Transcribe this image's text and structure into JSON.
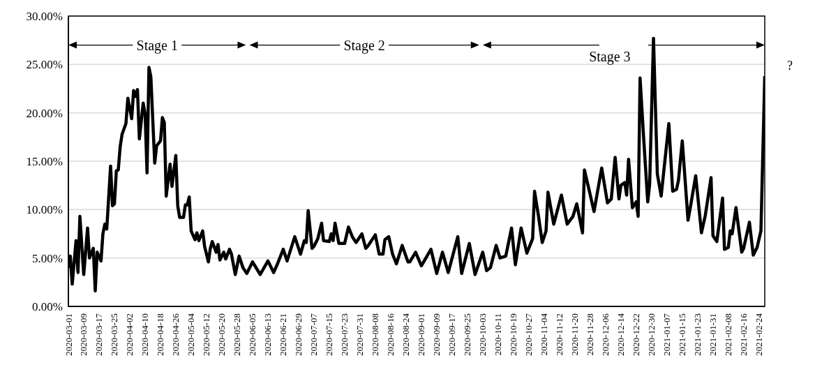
{
  "chart_data": {
    "type": "line",
    "x": [
      "2020-03-01",
      "2020-03-02",
      "2020-03-03",
      "2020-03-05",
      "2020-03-06",
      "2020-03-07",
      "2020-03-09",
      "2020-03-11",
      "2020-03-12",
      "2020-03-14",
      "2020-03-15",
      "2020-03-16",
      "2020-03-18",
      "2020-03-19",
      "2020-03-20",
      "2020-03-21",
      "2020-03-23",
      "2020-03-24",
      "2020-03-25",
      "2020-03-26",
      "2020-03-27",
      "2020-03-28",
      "2020-03-29",
      "2020-03-31",
      "2020-04-01",
      "2020-04-03",
      "2020-04-04",
      "2020-04-05",
      "2020-04-06",
      "2020-04-07",
      "2020-04-09",
      "2020-04-10",
      "2020-04-11",
      "2020-04-12",
      "2020-04-13",
      "2020-04-15",
      "2020-04-16",
      "2020-04-18",
      "2020-04-19",
      "2020-04-20",
      "2020-04-21",
      "2020-04-23",
      "2020-04-24",
      "2020-04-26",
      "2020-04-27",
      "2020-04-28",
      "2020-04-30",
      "2020-05-01",
      "2020-05-02",
      "2020-05-03",
      "2020-05-04",
      "2020-05-06",
      "2020-05-07",
      "2020-05-08",
      "2020-05-10",
      "2020-05-11",
      "2020-05-13",
      "2020-05-14",
      "2020-05-15",
      "2020-05-17",
      "2020-05-18",
      "2020-05-19",
      "2020-05-21",
      "2020-05-22",
      "2020-05-24",
      "2020-05-25",
      "2020-05-27",
      "2020-05-29",
      "2020-05-31",
      "2020-06-02",
      "2020-06-05",
      "2020-06-09",
      "2020-06-13",
      "2020-06-16",
      "2020-06-18",
      "2020-06-21",
      "2020-06-23",
      "2020-06-27",
      "2020-06-30",
      "2020-07-02",
      "2020-07-03",
      "2020-07-04",
      "2020-07-06",
      "2020-07-07",
      "2020-07-09",
      "2020-07-11",
      "2020-07-12",
      "2020-07-15",
      "2020-07-16",
      "2020-07-17",
      "2020-07-18",
      "2020-07-20",
      "2020-07-23",
      "2020-07-25",
      "2020-07-27",
      "2020-07-29",
      "2020-08-01",
      "2020-08-03",
      "2020-08-04",
      "2020-08-06",
      "2020-08-08",
      "2020-08-10",
      "2020-08-12",
      "2020-08-13",
      "2020-08-15",
      "2020-08-17",
      "2020-08-19",
      "2020-08-22",
      "2020-08-25",
      "2020-08-26",
      "2020-08-29",
      "2020-09-01",
      "2020-09-06",
      "2020-09-09",
      "2020-09-12",
      "2020-09-15",
      "2020-09-20",
      "2020-09-22",
      "2020-09-26",
      "2020-09-29",
      "2020-10-03",
      "2020-10-05",
      "2020-10-07",
      "2020-10-10",
      "2020-10-12",
      "2020-10-15",
      "2020-10-18",
      "2020-10-20",
      "2020-10-23",
      "2020-10-26",
      "2020-10-29",
      "2020-10-30",
      "2020-11-01",
      "2020-11-03",
      "2020-11-05",
      "2020-11-06",
      "2020-11-09",
      "2020-11-13",
      "2020-11-16",
      "2020-11-19",
      "2020-11-21",
      "2020-11-24",
      "2020-11-25",
      "2020-11-27",
      "2020-11-30",
      "2020-12-04",
      "2020-12-07",
      "2020-12-09",
      "2020-12-11",
      "2020-12-13",
      "2020-12-14",
      "2020-12-16",
      "2020-12-17",
      "2020-12-18",
      "2020-12-20",
      "2020-12-22",
      "2020-12-23",
      "2020-12-24",
      "2020-12-26",
      "2020-12-28",
      "2020-12-29",
      "2020-12-31",
      "2021-01-02",
      "2021-01-04",
      "2021-01-08",
      "2021-01-10",
      "2021-01-12",
      "2021-01-13",
      "2021-01-15",
      "2021-01-18",
      "2021-01-19",
      "2021-01-22",
      "2021-01-25",
      "2021-01-27",
      "2021-01-30",
      "2021-01-31",
      "2021-02-02",
      "2021-02-05",
      "2021-02-06",
      "2021-02-08",
      "2021-02-09",
      "2021-02-10",
      "2021-02-12",
      "2021-02-15",
      "2021-02-16",
      "2021-02-19",
      "2021-02-21",
      "2021-02-23",
      "2021-02-25",
      "2021-02-27"
    ],
    "series": [
      {
        "color": "#000000",
        "values": [
          4.0,
          5.2,
          2.3,
          6.8,
          3.5,
          9.3,
          3.3,
          8.1,
          5.0,
          6.0,
          1.6,
          5.6,
          4.7,
          7.5,
          8.5,
          8.0,
          14.5,
          10.4,
          10.6,
          14.0,
          14.1,
          16.5,
          17.8,
          18.9,
          21.5,
          19.4,
          22.3,
          21.7,
          22.4,
          17.3,
          21.0,
          19.9,
          13.8,
          24.7,
          23.7,
          14.8,
          16.6,
          17.1,
          19.5,
          19.0,
          11.4,
          14.7,
          12.4,
          15.6,
          10.4,
          9.2,
          9.2,
          10.5,
          10.5,
          11.3,
          7.8,
          6.9,
          7.6,
          6.8,
          7.8,
          6.2,
          4.6,
          6.0,
          6.7,
          5.6,
          6.4,
          4.8,
          5.6,
          4.9,
          5.9,
          5.4,
          3.3,
          5.2,
          4.0,
          3.4,
          4.6,
          3.3,
          4.7,
          3.5,
          4.4,
          5.9,
          4.7,
          7.2,
          5.4,
          6.8,
          6.6,
          9.9,
          6.0,
          6.2,
          7.0,
          8.6,
          6.8,
          6.7,
          7.5,
          6.8,
          8.6,
          6.5,
          6.5,
          8.2,
          7.2,
          6.6,
          7.5,
          6.0,
          6.2,
          6.8,
          7.4,
          5.4,
          5.4,
          6.9,
          7.2,
          5.4,
          4.4,
          6.3,
          4.6,
          4.6,
          5.6,
          4.2,
          5.9,
          3.4,
          5.6,
          3.5,
          7.2,
          3.4,
          6.5,
          3.3,
          5.6,
          3.7,
          4.0,
          6.3,
          5.0,
          5.2,
          8.1,
          4.3,
          8.1,
          5.5,
          7.0,
          11.9,
          9.4,
          6.6,
          7.8,
          11.8,
          8.5,
          11.5,
          8.5,
          9.3,
          10.6,
          7.6,
          14.1,
          12.4,
          9.8,
          14.3,
          10.7,
          11.1,
          15.4,
          11.1,
          12.5,
          12.8,
          11.5,
          15.2,
          10.2,
          10.8,
          9.3,
          23.6,
          17.0,
          10.8,
          12.6,
          27.7,
          13.7,
          11.4,
          18.9,
          11.9,
          12.1,
          13.0,
          17.1,
          8.9,
          10.0,
          13.5,
          7.6,
          9.4,
          13.3,
          7.3,
          6.7,
          11.2,
          5.9,
          6.1,
          7.8,
          7.5,
          10.2,
          5.6,
          6.0,
          8.7,
          5.3,
          6.1,
          7.8,
          23.8
        ]
      }
    ],
    "xlim": [
      "2020-03-01",
      "2021-02-27"
    ],
    "xticks": [
      "2020-03-01",
      "2020-03-09",
      "2020-03-17",
      "2020-03-25",
      "2020-04-02",
      "2020-04-10",
      "2020-04-18",
      "2020-04-26",
      "2020-05-04",
      "2020-05-12",
      "2020-05-20",
      "2020-05-28",
      "2020-06-05",
      "2020-06-13",
      "2020-06-21",
      "2020-06-29",
      "2020-07-07",
      "2020-07-15",
      "2020-07-23",
      "2020-07-31",
      "2020-08-08",
      "2020-08-16",
      "2020-08-24",
      "2020-09-01",
      "2020-09-09",
      "2020-09-17",
      "2020-09-25",
      "2020-10-03",
      "2020-10-11",
      "2020-10-19",
      "2020-10-27",
      "2020-11-04",
      "2020-11-12",
      "2020-11-20",
      "2020-11-28",
      "2020-12-06",
      "2020-12-14",
      "2020-12-22",
      "2020-12-30",
      "2021-01-07",
      "2021-01-15",
      "2021-01-23",
      "2021-01-31",
      "2021-02-08",
      "2021-02-16",
      "2021-02-24"
    ],
    "ylim": [
      0,
      30
    ],
    "yticks": [
      {
        "value": 0,
        "label": "0.00%"
      },
      {
        "value": 5,
        "label": "5.00%"
      },
      {
        "value": 10,
        "label": "10.00%"
      },
      {
        "value": 15,
        "label": "15.00%"
      },
      {
        "value": 20,
        "label": "20.00%"
      },
      {
        "value": 25,
        "label": "25.00%"
      },
      {
        "value": 30,
        "label": "30.00%"
      }
    ],
    "grid": "y",
    "marker": "none",
    "line_style": "solid",
    "annotations": [
      "Stage 1",
      "Stage 2",
      "Stage 3",
      "?"
    ]
  }
}
